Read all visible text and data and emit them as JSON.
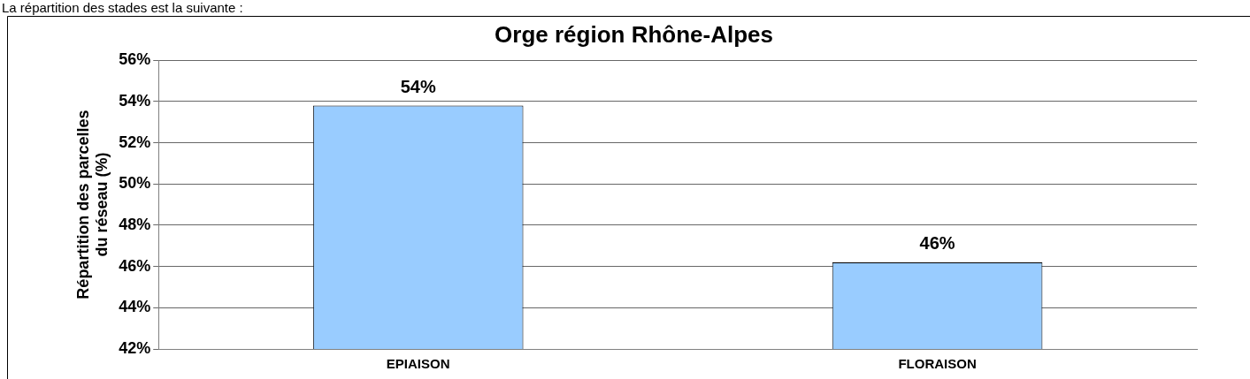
{
  "chart_data": {
    "type": "bar",
    "title": "Orge région Rhône-Alpes",
    "ylabel": "Répartition des parcelles du réseau (%)",
    "annotations": [
      "La répartition des stades est la suivante :"
    ],
    "categories": [
      "EPIAISON",
      "FLORAISON"
    ],
    "values": [
      53.8,
      46.2
    ],
    "value_labels": [
      "54%",
      "46%"
    ],
    "color": "#99ccff",
    "ylim": [
      42,
      56
    ],
    "yticks": [
      {
        "value": 42,
        "label": "42%"
      },
      {
        "value": 44,
        "label": "44%"
      },
      {
        "value": 46,
        "label": "46%"
      },
      {
        "value": 48,
        "label": "48%"
      },
      {
        "value": 50,
        "label": "50%"
      },
      {
        "value": 52,
        "label": "52%"
      },
      {
        "value": 54,
        "label": "54%"
      },
      {
        "value": 56,
        "label": "56%"
      }
    ],
    "grid": "y",
    "legend": false
  }
}
